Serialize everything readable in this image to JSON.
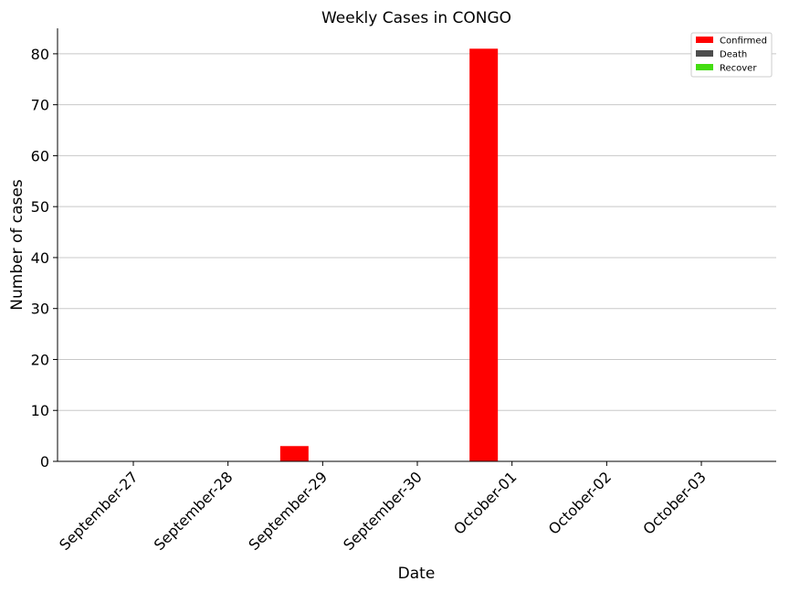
{
  "chart_data": {
    "type": "bar",
    "title": "Weekly Cases in CONGO",
    "xlabel": "Date",
    "ylabel": "Number of cases",
    "categories": [
      "September-27",
      "September-28",
      "September-29",
      "September-30",
      "October-01",
      "October-02",
      "October-03"
    ],
    "series": [
      {
        "name": "Confirmed",
        "color": "#ff0000",
        "values": [
          0,
          0,
          3,
          0,
          81,
          0,
          0
        ]
      },
      {
        "name": "Death",
        "color": "#4d4d4d",
        "values": [
          0,
          0,
          0,
          0,
          0,
          0,
          0
        ]
      },
      {
        "name": "Recover",
        "color": "#44dd11",
        "values": [
          0,
          0,
          0,
          0,
          0,
          0,
          0
        ]
      }
    ],
    "ylim": [
      0,
      85
    ],
    "yticks": [
      0,
      10,
      20,
      30,
      40,
      50,
      60,
      70,
      80
    ],
    "grid": "horizontal",
    "legend": "top-right"
  }
}
